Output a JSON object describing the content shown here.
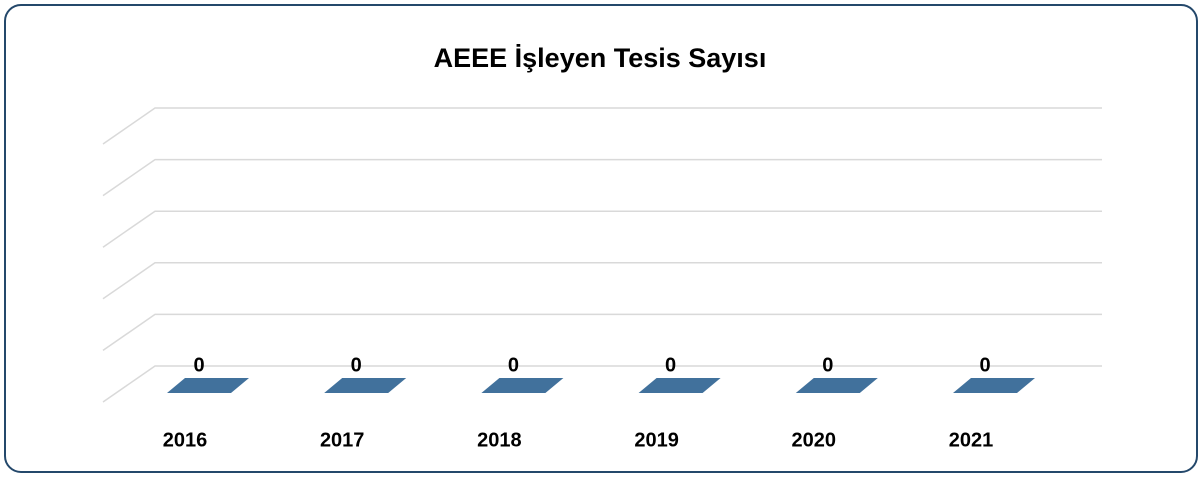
{
  "chart_data": {
    "type": "bar3d",
    "title": "AEEE İşleyen Tesis Sayısı",
    "categories": [
      "2016",
      "2017",
      "2018",
      "2019",
      "2020",
      "2021"
    ],
    "values": [
      0,
      0,
      0,
      0,
      0,
      0
    ],
    "color": "#41719c",
    "ylim": [
      0,
      1
    ],
    "yticks": [
      0,
      0.2,
      0.4,
      0.6,
      0.8,
      1
    ],
    "grid": true
  }
}
